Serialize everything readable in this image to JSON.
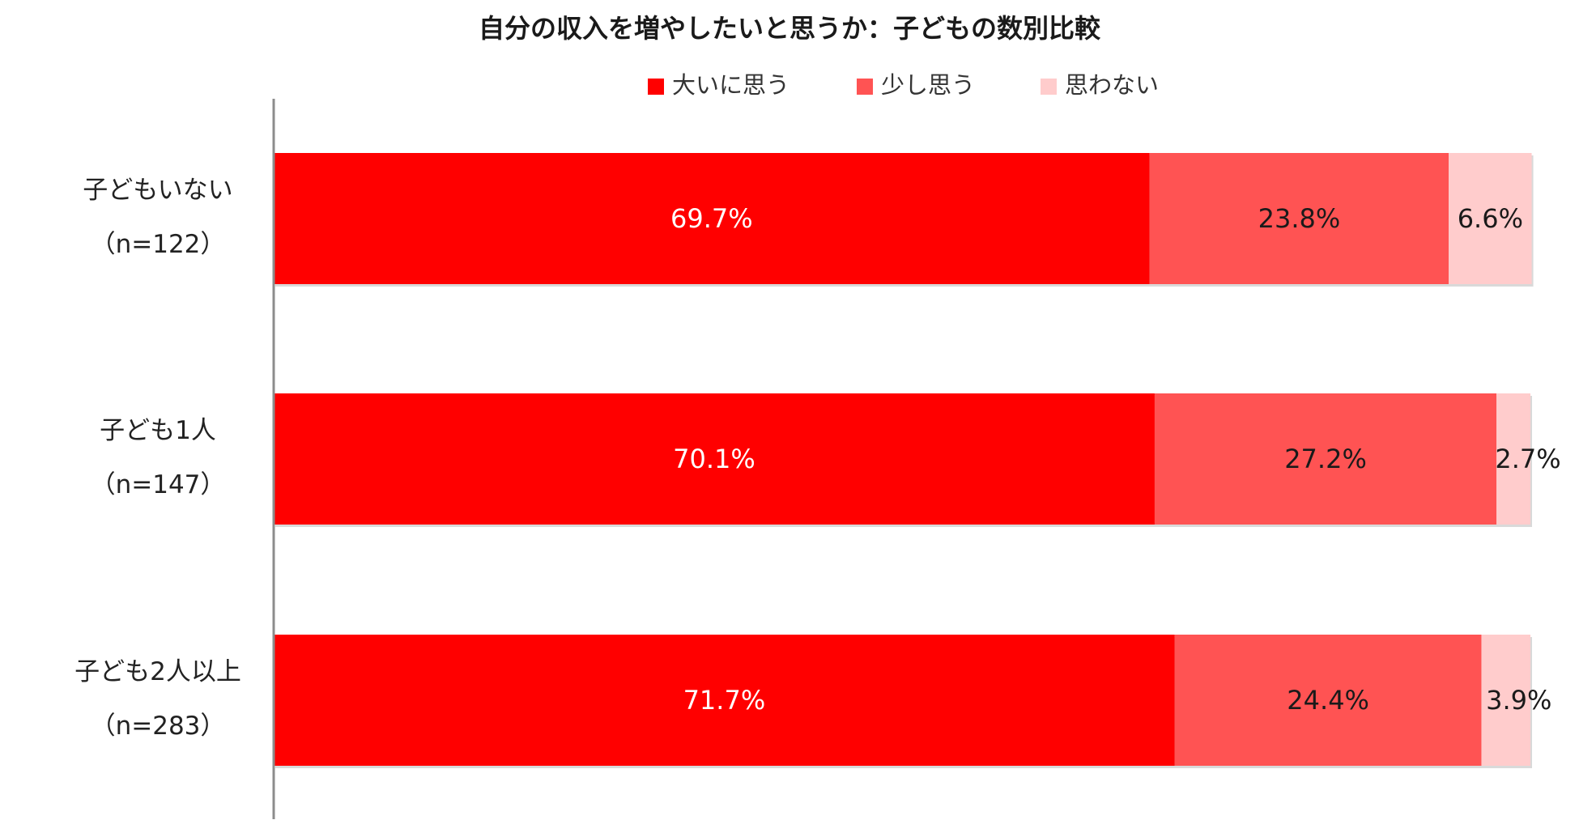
{
  "chart_data": {
    "type": "bar",
    "orientation": "horizontal",
    "stacked": true,
    "percent": true,
    "title": "自分の収入を増やしたいと思うか：子どもの数別比較",
    "legend_position": "top",
    "categories": [
      {
        "name": "子どもいない",
        "n": "（n=122）"
      },
      {
        "name": "子ども1人",
        "n": "（n=147）"
      },
      {
        "name": "子ども2人以上",
        "n": "（n=283）"
      }
    ],
    "series": [
      {
        "name": "大いに思う",
        "color": "#ff0000",
        "label_color": "#ffffff",
        "values": [
          69.7,
          70.1,
          71.7
        ],
        "labels": [
          "69.7%",
          "70.1%",
          "71.7%"
        ]
      },
      {
        "name": "少し思う",
        "color": "#ff5353",
        "label_color": "#1a1a1a",
        "values": [
          23.8,
          27.2,
          24.4
        ],
        "labels": [
          "23.8%",
          "27.2%",
          "24.4%"
        ]
      },
      {
        "name": "思わない",
        "color": "#ffcccc",
        "label_color": "#1a1a1a",
        "values": [
          6.6,
          2.7,
          3.9
        ],
        "labels": [
          "6.6%",
          "2.7%",
          "3.9%"
        ]
      }
    ],
    "xlim": [
      0,
      100
    ],
    "grid": false
  }
}
